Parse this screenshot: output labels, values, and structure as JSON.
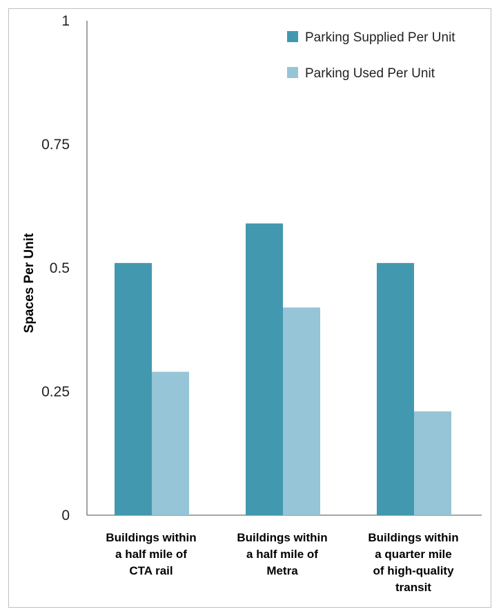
{
  "chart_data": {
    "type": "bar",
    "title": "",
    "xlabel": "",
    "ylabel": "Spaces Per Unit",
    "ylim": [
      0,
      1
    ],
    "yticks": [
      {
        "value": 0,
        "label": "0"
      },
      {
        "value": 0.25,
        "label": "0.25"
      },
      {
        "value": 0.5,
        "label": "0.5"
      },
      {
        "value": 0.75,
        "label": "0.75"
      },
      {
        "value": 1,
        "label": "1"
      }
    ],
    "grid": false,
    "legend_position": "top-right",
    "categories": [
      [
        "Buildings within",
        "a half mile of",
        "CTA rail"
      ],
      [
        "Buildings within",
        "a half mile of",
        "Metra"
      ],
      [
        "Buildings within",
        "a quarter mile",
        "of high-quality",
        "transit"
      ]
    ],
    "series": [
      {
        "name": "Parking Supplied Per Unit",
        "color": "#4298AF",
        "values": [
          0.51,
          0.59,
          0.51
        ]
      },
      {
        "name": "Parking Used Per Unit",
        "color": "#95C5D6",
        "values": [
          0.29,
          0.42,
          0.21
        ]
      }
    ]
  }
}
